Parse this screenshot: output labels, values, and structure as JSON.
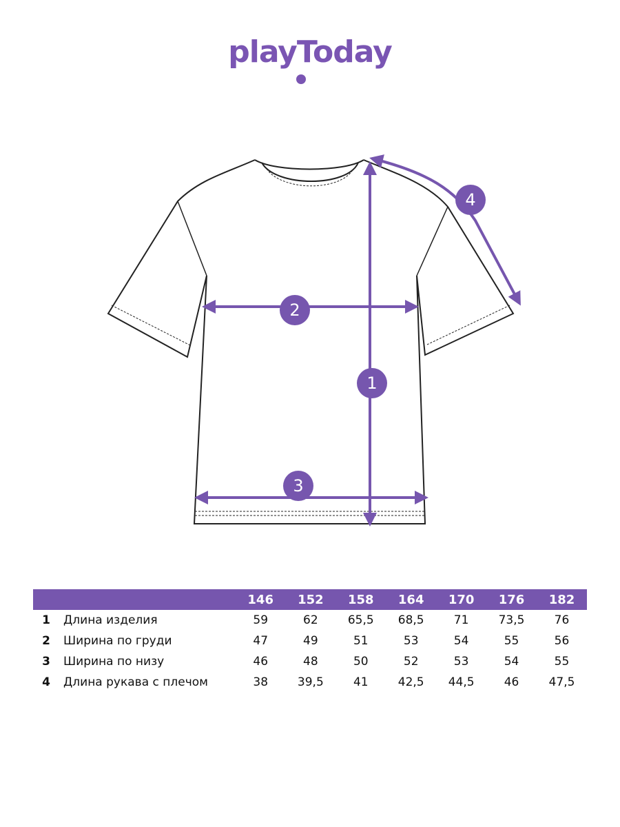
{
  "brand": {
    "logo_text": "playToday",
    "accent_color": "#7656ae"
  },
  "diagram": {
    "markers": [
      "1",
      "2",
      "3",
      "4"
    ]
  },
  "size_table": {
    "sizes": [
      "146",
      "152",
      "158",
      "164",
      "170",
      "176",
      "182"
    ],
    "rows": [
      {
        "index": "1",
        "label": "Длина изделия",
        "values": [
          "59",
          "62",
          "65,5",
          "68,5",
          "71",
          "73,5",
          "76"
        ]
      },
      {
        "index": "2",
        "label": "Ширина по груди",
        "values": [
          "47",
          "49",
          "51",
          "53",
          "54",
          "55",
          "56"
        ]
      },
      {
        "index": "3",
        "label": "Ширина по низу",
        "values": [
          "46",
          "48",
          "50",
          "52",
          "53",
          "54",
          "55"
        ]
      },
      {
        "index": "4",
        "label": "Длина рукава с плечом",
        "values": [
          "38",
          "39,5",
          "41",
          "42,5",
          "44,5",
          "46",
          "47,5"
        ]
      }
    ]
  }
}
